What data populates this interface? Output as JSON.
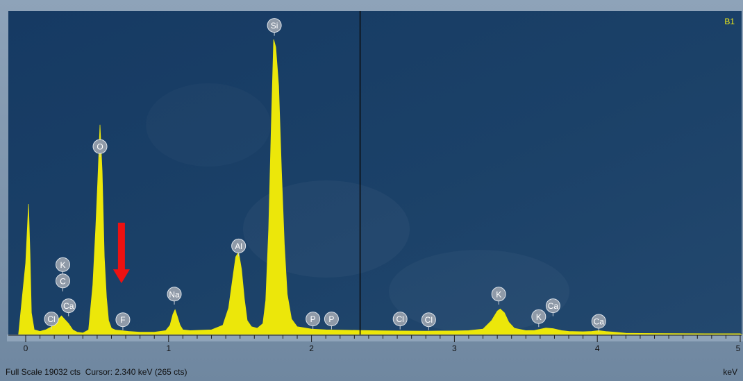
{
  "panel_label": "B1",
  "status": {
    "full_scale": "Full Scale 19032 cts",
    "cursor": "Cursor: 2.340 keV (265 cts)"
  },
  "colors": {
    "plot_bg": "#173a63",
    "spectrum": "#ece70a",
    "marker_fill": "#8f9aa8",
    "arrow": "#ee1111",
    "cursor_line": "#0a0a0a",
    "panel_label": "#f0ec16"
  },
  "chart_data": {
    "type": "area",
    "title": "",
    "xlabel": "keV",
    "ylabel": "",
    "xlim": [
      -0.05,
      5.05
    ],
    "ylim": [
      0,
      19032
    ],
    "x_ticks": [
      "0",
      "1",
      "2",
      "3",
      "4",
      "5"
    ],
    "cursor_kev": 2.34,
    "cursor_cts": 265,
    "series": [
      {
        "points": [
          [
            -0.05,
            0
          ],
          [
            0.0,
            4600
          ],
          [
            0.02,
            8400
          ],
          [
            0.03,
            5200
          ],
          [
            0.04,
            1400
          ],
          [
            0.06,
            300
          ],
          [
            0.1,
            200
          ],
          [
            0.14,
            300
          ],
          [
            0.18,
            500
          ],
          [
            0.22,
            900
          ],
          [
            0.25,
            1200
          ],
          [
            0.27,
            1000
          ],
          [
            0.3,
            700
          ],
          [
            0.33,
            300
          ],
          [
            0.36,
            150
          ],
          [
            0.4,
            100
          ],
          [
            0.44,
            300
          ],
          [
            0.47,
            3200
          ],
          [
            0.49,
            6800
          ],
          [
            0.505,
            10000
          ],
          [
            0.52,
            13500
          ],
          [
            0.535,
            10500
          ],
          [
            0.55,
            5000
          ],
          [
            0.565,
            2400
          ],
          [
            0.58,
            900
          ],
          [
            0.6,
            400
          ],
          [
            0.63,
            280
          ],
          [
            0.67,
            250
          ],
          [
            0.72,
            200
          ],
          [
            0.8,
            150
          ],
          [
            0.9,
            150
          ],
          [
            0.98,
            250
          ],
          [
            1.01,
            600
          ],
          [
            1.03,
            1300
          ],
          [
            1.045,
            1600
          ],
          [
            1.06,
            1200
          ],
          [
            1.08,
            600
          ],
          [
            1.1,
            300
          ],
          [
            1.15,
            250
          ],
          [
            1.3,
            300
          ],
          [
            1.38,
            600
          ],
          [
            1.42,
            1700
          ],
          [
            1.45,
            3700
          ],
          [
            1.47,
            5000
          ],
          [
            1.49,
            5300
          ],
          [
            1.51,
            4200
          ],
          [
            1.53,
            2300
          ],
          [
            1.55,
            900
          ],
          [
            1.58,
            500
          ],
          [
            1.62,
            400
          ],
          [
            1.66,
            700
          ],
          [
            1.68,
            2200
          ],
          [
            1.7,
            6800
          ],
          [
            1.72,
            14000
          ],
          [
            1.735,
            19000
          ],
          [
            1.75,
            18500
          ],
          [
            1.77,
            16000
          ],
          [
            1.79,
            10500
          ],
          [
            1.81,
            5800
          ],
          [
            1.83,
            2600
          ],
          [
            1.86,
            1000
          ],
          [
            1.9,
            500
          ],
          [
            2.0,
            350
          ],
          [
            2.1,
            300
          ],
          [
            2.2,
            280
          ],
          [
            2.34,
            265
          ],
          [
            2.5,
            240
          ],
          [
            2.62,
            230
          ],
          [
            2.8,
            220
          ],
          [
            2.9,
            230
          ],
          [
            3.0,
            230
          ],
          [
            3.1,
            250
          ],
          [
            3.2,
            350
          ],
          [
            3.26,
            900
          ],
          [
            3.3,
            1500
          ],
          [
            3.32,
            1650
          ],
          [
            3.35,
            1400
          ],
          [
            3.38,
            800
          ],
          [
            3.42,
            400
          ],
          [
            3.5,
            250
          ],
          [
            3.56,
            260
          ],
          [
            3.6,
            340
          ],
          [
            3.64,
            420
          ],
          [
            3.69,
            380
          ],
          [
            3.75,
            250
          ],
          [
            3.8,
            200
          ],
          [
            3.9,
            180
          ],
          [
            3.96,
            200
          ],
          [
            4.01,
            250
          ],
          [
            4.06,
            190
          ],
          [
            4.15,
            130
          ],
          [
            4.2,
            80
          ],
          [
            4.3,
            70
          ],
          [
            4.5,
            60
          ],
          [
            4.8,
            50
          ],
          [
            5.0,
            50
          ],
          [
            5.05,
            0
          ]
        ]
      }
    ],
    "peak_labels": [
      {
        "element": "Cl",
        "kev": 0.18,
        "cts": 1000
      },
      {
        "element": "K",
        "kev": 0.26,
        "cts": 4500
      },
      {
        "element": "C",
        "kev": 0.26,
        "cts": 3450
      },
      {
        "element": "Ca",
        "kev": 0.3,
        "cts": 1850
      },
      {
        "element": "O",
        "kev": 0.52,
        "cts": 12100
      },
      {
        "element": "F",
        "kev": 0.68,
        "cts": 950
      },
      {
        "element": "Na",
        "kev": 1.04,
        "cts": 2600
      },
      {
        "element": "Al",
        "kev": 1.49,
        "cts": 5700
      },
      {
        "element": "Si",
        "kev": 1.74,
        "cts": 19900
      },
      {
        "element": "P",
        "kev": 2.01,
        "cts": 1000
      },
      {
        "element": "P",
        "kev": 2.14,
        "cts": 1000
      },
      {
        "element": "Cl",
        "kev": 2.62,
        "cts": 1000
      },
      {
        "element": "Cl",
        "kev": 2.82,
        "cts": 950
      },
      {
        "element": "K",
        "kev": 3.31,
        "cts": 2600
      },
      {
        "element": "K",
        "kev": 3.59,
        "cts": 1150
      },
      {
        "element": "Ca",
        "kev": 3.69,
        "cts": 1850
      },
      {
        "element": "Ca",
        "kev": 4.01,
        "cts": 850
      }
    ],
    "annotation_arrow": {
      "kev": 0.67,
      "cts_top": 7200,
      "cts_tip": 3300
    }
  }
}
